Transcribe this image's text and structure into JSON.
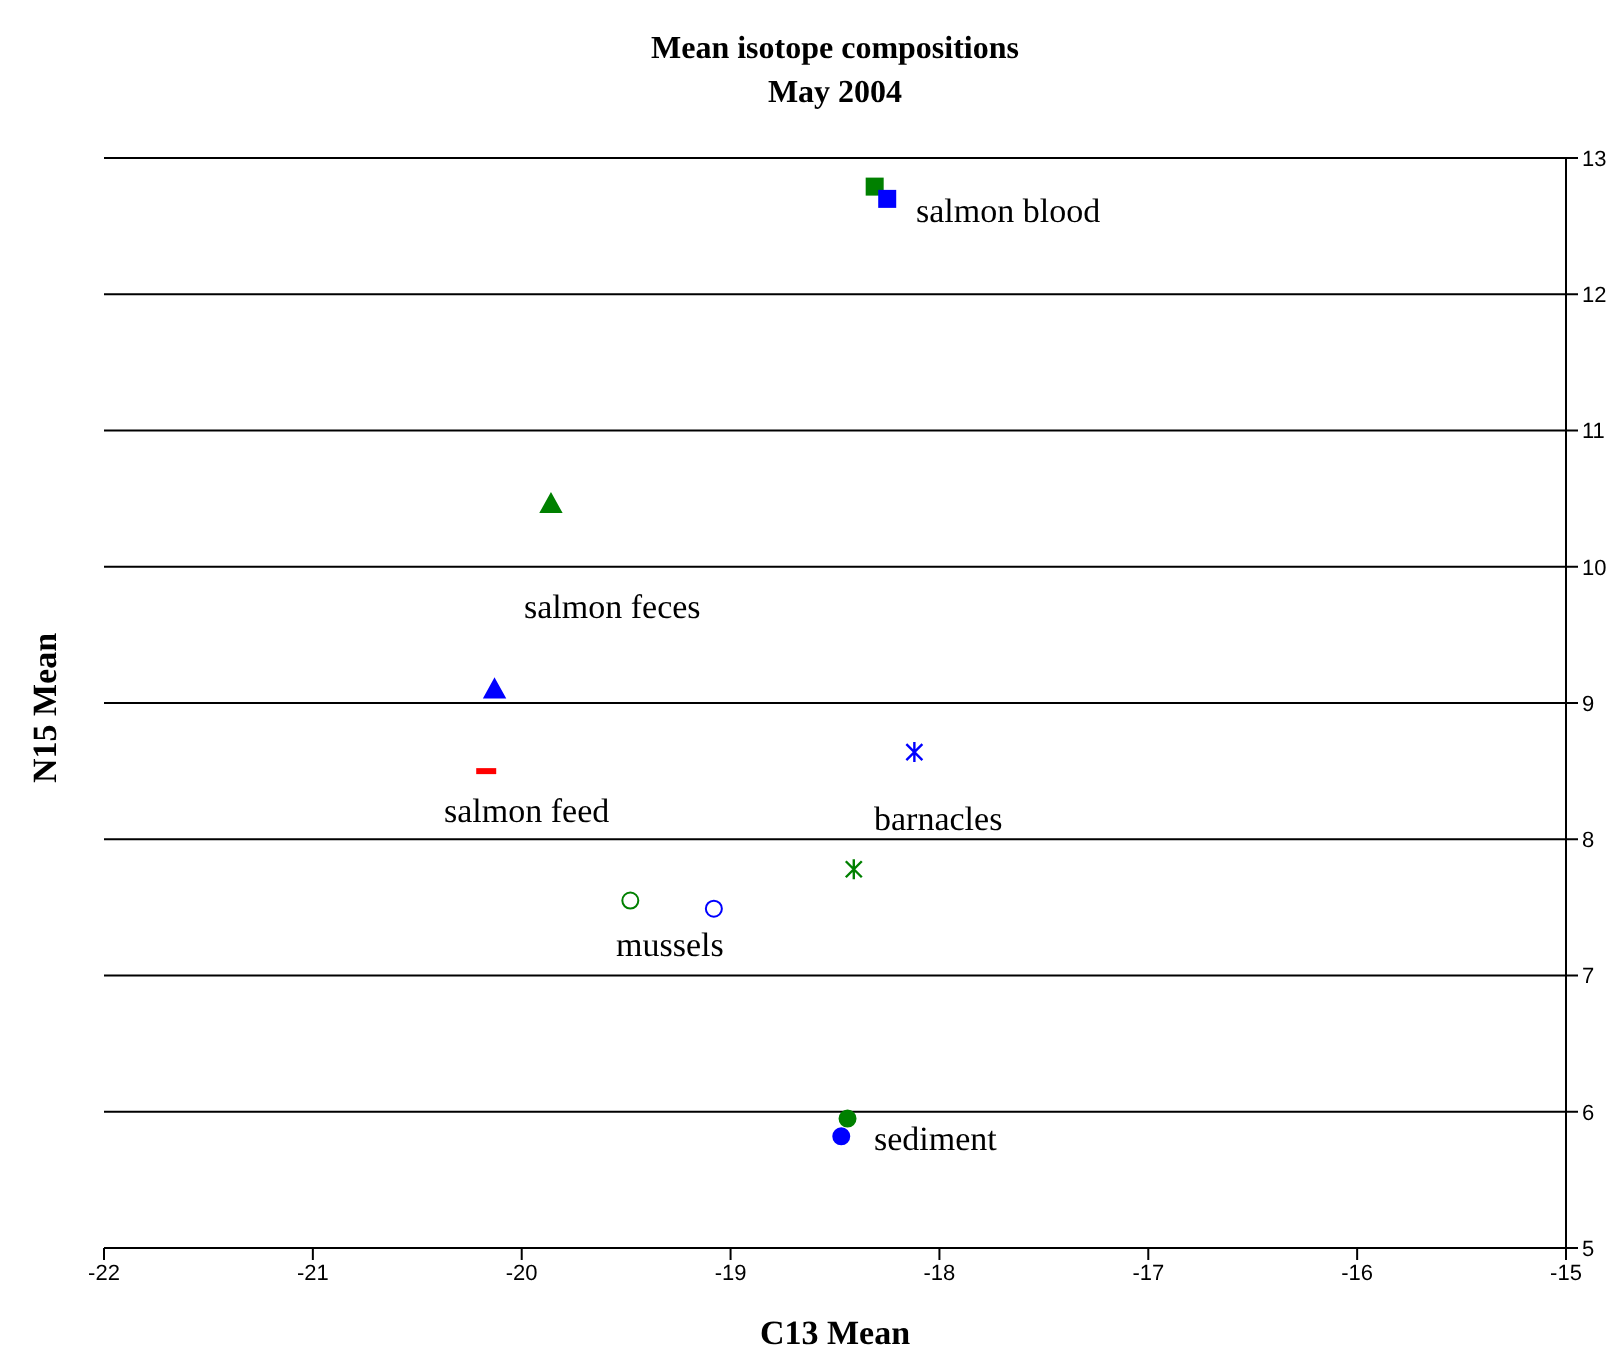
{
  "chart_data": {
    "type": "scatter",
    "title": "Mean isotope compositions",
    "subtitle": "May 2004",
    "xlabel": "C13 Mean",
    "ylabel": "N15 Mean",
    "xlim": [
      -22,
      -15
    ],
    "xticks": [
      -22,
      -21,
      -20,
      -19,
      -18,
      -17,
      -16,
      -15
    ],
    "ylim": [
      5,
      13
    ],
    "yticks": [
      5,
      6,
      7,
      8,
      9,
      10,
      11,
      12,
      13
    ],
    "grid": "y",
    "series": [
      {
        "color": "#008000",
        "marker": "square",
        "x": [
          -18.31
        ],
        "values": [
          12.79
        ]
      },
      {
        "color": "#0000ff",
        "marker": "square",
        "x": [
          -18.25
        ],
        "values": [
          12.7
        ]
      },
      {
        "color": "#008000",
        "marker": "triangle",
        "x": [
          -19.86
        ],
        "values": [
          10.46
        ]
      },
      {
        "color": "#0000ff",
        "marker": "triangle",
        "x": [
          -20.13
        ],
        "values": [
          9.1
        ]
      },
      {
        "color": "#ff0000",
        "x": [
          -20.17
        ],
        "values": [
          8.5
        ]
      },
      {
        "color": "#0000ff",
        "marker": "cross",
        "x": [
          -18.12
        ],
        "values": [
          8.64
        ]
      },
      {
        "color": "#008000",
        "marker": "cross",
        "x": [
          -18.41
        ],
        "values": [
          7.78
        ]
      },
      {
        "color": "#008000",
        "marker": "circle",
        "x": [
          -19.48
        ],
        "values": [
          7.55
        ]
      },
      {
        "color": "#0000ff",
        "marker": "circle",
        "x": [
          -19.08
        ],
        "values": [
          7.49
        ]
      },
      {
        "color": "#008000",
        "marker": "circle",
        "x": [
          -18.44
        ],
        "values": [
          5.95
        ]
      },
      {
        "color": "#0000ff",
        "marker": "circle",
        "x": [
          -18.47
        ],
        "values": [
          5.82
        ]
      }
    ],
    "annotations": [
      "salmon blood",
      "salmon feces",
      "salmon feed",
      "barnacles",
      "mussels",
      "sediment"
    ]
  }
}
